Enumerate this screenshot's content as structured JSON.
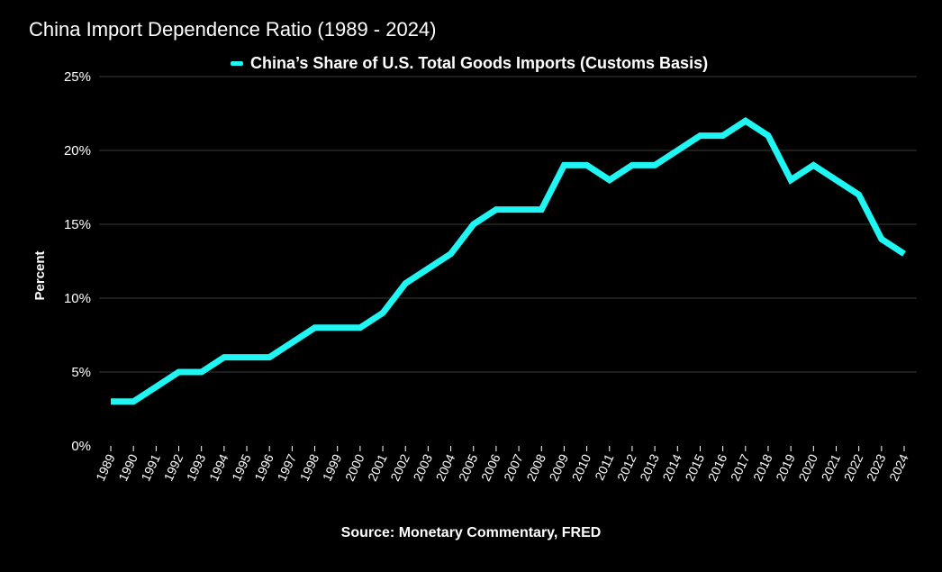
{
  "chart_data": {
    "type": "line",
    "title": "China Import Dependence Ratio (1989 - 2024)",
    "ylabel": "Percent",
    "xlabel": "",
    "source": "Source: Monetary Commentary, FRED",
    "ylim": [
      0,
      25
    ],
    "yticks": [
      0,
      5,
      10,
      15,
      20,
      25
    ],
    "ytick_suffix": "%",
    "grid": "horizontal",
    "legend_position": "top-center",
    "x": [
      "1989",
      "1990",
      "1991",
      "1992",
      "1993",
      "1994",
      "1995",
      "1996",
      "1997",
      "1998",
      "1999",
      "2000",
      "2001",
      "2002",
      "2003",
      "2004",
      "2005",
      "2006",
      "2007",
      "2008",
      "2009",
      "2010",
      "2011",
      "2012",
      "2013",
      "2014",
      "2015",
      "2016",
      "2017",
      "2018",
      "2019",
      "2020",
      "2021",
      "2022",
      "2023",
      "2024"
    ],
    "series": [
      {
        "name": "China’s Share of U.S. Total Goods Imports (Customs Basis)",
        "color": "#1ff5f2",
        "values": [
          3,
          3,
          4,
          5,
          5,
          6,
          6,
          6,
          7,
          8,
          8,
          8,
          9,
          11,
          12,
          13,
          15,
          16,
          16,
          16,
          19,
          19,
          18,
          19,
          19,
          20,
          21,
          21,
          22,
          21,
          18,
          19,
          18,
          17,
          14,
          13
        ]
      }
    ]
  }
}
